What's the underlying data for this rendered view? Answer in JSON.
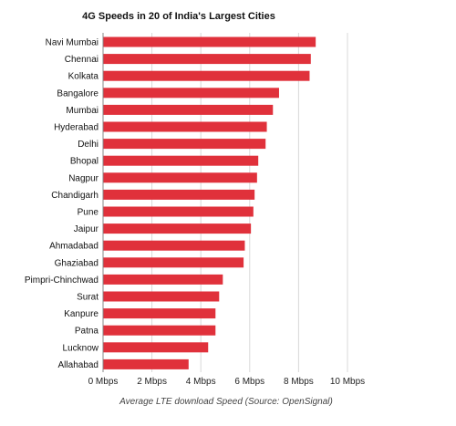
{
  "chart_data": {
    "type": "bar",
    "orientation": "horizontal",
    "title": "4G Speeds in 20 of India's Largest Cities",
    "xlabel": "Average LTE download Speed (Source: OpenSignal)",
    "ylabel": "",
    "categories": [
      "Navi Mumbai",
      "Chennai",
      "Kolkata",
      "Bangalore",
      "Mumbai",
      "Hyderabad",
      "Delhi",
      "Bhopal",
      "Nagpur",
      "Chandigarh",
      "Pune",
      "Jaipur",
      "Ahmadabad",
      "Ghaziabad",
      "Pimpri-Chinchwad",
      "Surat",
      "Kanpure",
      "Patna",
      "Lucknow",
      "Allahabad"
    ],
    "values": [
      8.7,
      8.5,
      8.45,
      7.2,
      6.95,
      6.7,
      6.65,
      6.35,
      6.3,
      6.2,
      6.15,
      6.05,
      5.8,
      5.75,
      4.9,
      4.75,
      4.6,
      4.6,
      4.3,
      3.5
    ],
    "xlim": [
      0,
      10
    ],
    "xticks": [
      0,
      2,
      4,
      6,
      8,
      10
    ],
    "xtick_labels": [
      "0 Mbps",
      "2 Mbps",
      "4 Mbps",
      "6 Mbps",
      "8 Mbps",
      "10 Mbps"
    ],
    "grid": true,
    "bar_color": "#e0313b"
  }
}
